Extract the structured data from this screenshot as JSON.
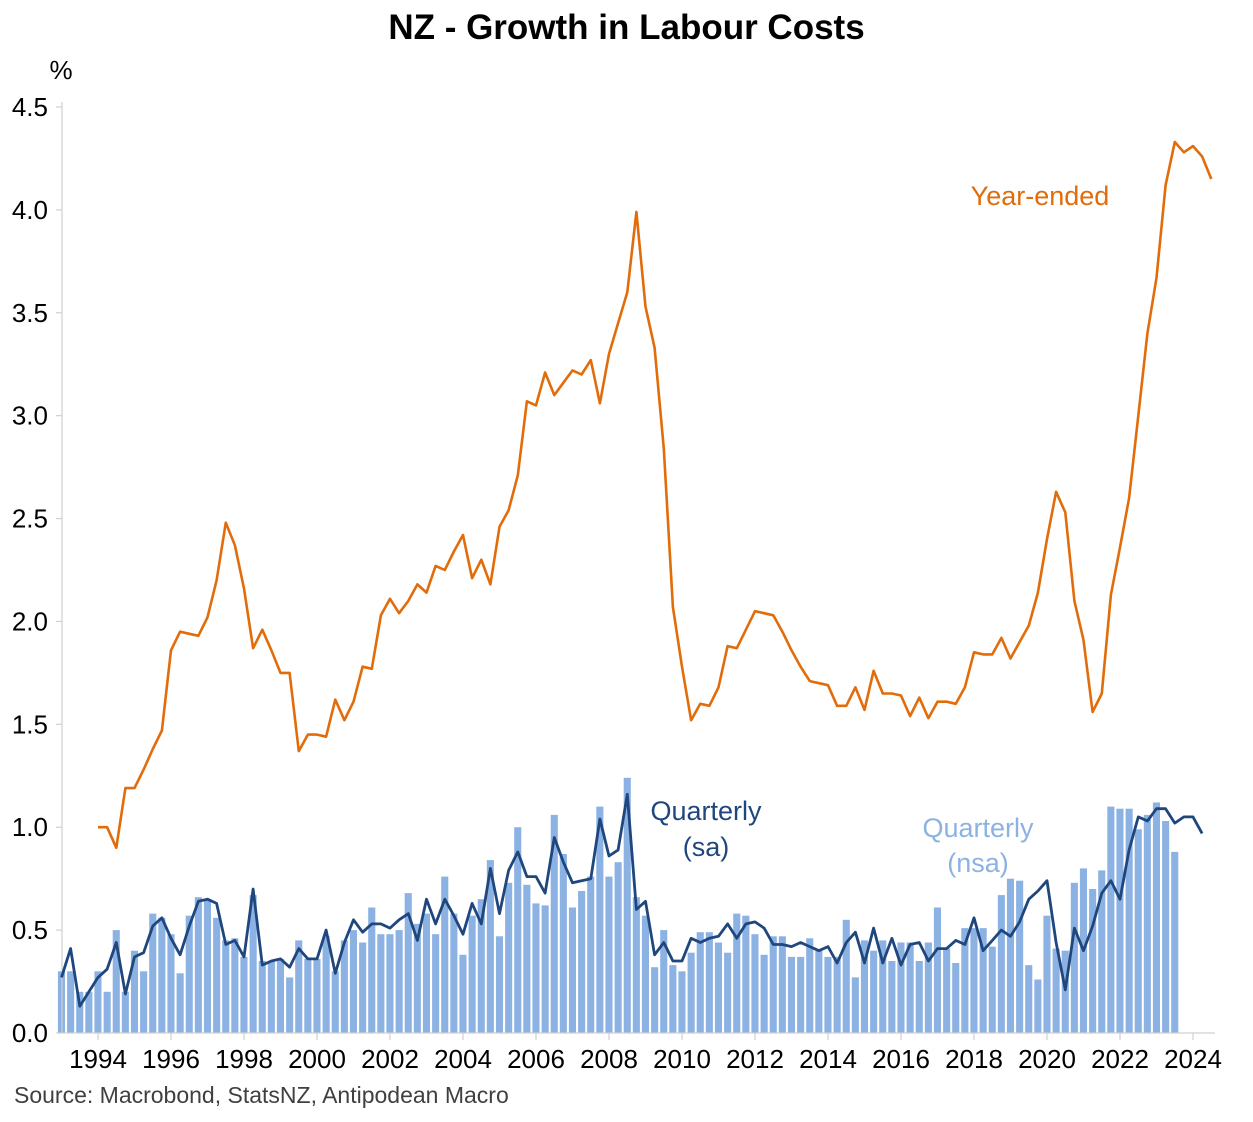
{
  "title": "NZ - Growth in Labour Costs",
  "source": "Source: Macrobond, StatsNZ, Antipodean Macro",
  "chart_data": {
    "type": "bar+line",
    "title": "NZ - Growth in Labour Costs",
    "ylabel": "%",
    "ylim": [
      0,
      4.5
    ],
    "yticks": [
      "0.0",
      "0.5",
      "1.0",
      "1.5",
      "2.0",
      "2.5",
      "3.0",
      "3.5",
      "4.0",
      "4.5"
    ],
    "xticks": [
      "1994",
      "1996",
      "1998",
      "2000",
      "2002",
      "2004",
      "2006",
      "2008",
      "2010",
      "2012",
      "2014",
      "2016",
      "2018",
      "2020",
      "2022",
      "2024"
    ],
    "x_start": 1993.0,
    "x_step": 0.25,
    "colors": {
      "bars": "#8cb2e3",
      "sa": "#1f477e",
      "year_ended": "#e36c0a"
    },
    "annotations": {
      "year_ended": "Year-ended",
      "sa_line1": "Quarterly",
      "sa_line2": "(sa)",
      "nsa_line1": "Quarterly",
      "nsa_line2": "(nsa)"
    },
    "series": [
      {
        "name": "Quarterly (nsa)",
        "type": "bar",
        "values": [
          0.3,
          0.3,
          0.2,
          0.2,
          0.3,
          0.2,
          0.5,
          0.2,
          0.4,
          0.3,
          0.58,
          0.56,
          0.48,
          0.29,
          0.57,
          0.66,
          0.65,
          0.56,
          0.45,
          0.46,
          0.37,
          0.67,
          0.35,
          0.35,
          0.36,
          0.27,
          0.45,
          0.36,
          0.36,
          0.47,
          0.3,
          0.45,
          0.5,
          0.44,
          0.61,
          0.48,
          0.48,
          0.5,
          0.68,
          0.53,
          0.58,
          0.48,
          0.76,
          0.58,
          0.38,
          0.57,
          0.65,
          0.84,
          0.47,
          0.73,
          1.0,
          0.72,
          0.63,
          0.62,
          1.06,
          0.87,
          0.61,
          0.69,
          0.76,
          1.1,
          0.76,
          0.83,
          1.24,
          0.66,
          0.57,
          0.32,
          0.5,
          0.33,
          0.3,
          0.39,
          0.49,
          0.49,
          0.44,
          0.39,
          0.58,
          0.57,
          0.48,
          0.38,
          0.47,
          0.47,
          0.37,
          0.37,
          0.46,
          0.4,
          0.37,
          0.37,
          0.55,
          0.27,
          0.45,
          0.4,
          0.45,
          0.35,
          0.44,
          0.44,
          0.35,
          0.44,
          0.61,
          0.41,
          0.34,
          0.51,
          0.51,
          0.51,
          0.42,
          0.67,
          0.75,
          0.74,
          0.33,
          0.26,
          0.57,
          0.41,
          0.4,
          0.73,
          0.8,
          0.7,
          0.79,
          1.1,
          1.09,
          1.09,
          0.99,
          1.06,
          1.12,
          1.03,
          0.88
        ]
      },
      {
        "name": "Quarterly (sa)",
        "type": "line",
        "values": [
          0.27,
          0.41,
          0.13,
          0.2,
          0.27,
          0.31,
          0.44,
          0.19,
          0.37,
          0.39,
          0.52,
          0.56,
          0.46,
          0.38,
          0.52,
          0.64,
          0.65,
          0.63,
          0.43,
          0.45,
          0.37,
          0.7,
          0.33,
          0.35,
          0.36,
          0.32,
          0.41,
          0.36,
          0.36,
          0.5,
          0.29,
          0.44,
          0.55,
          0.49,
          0.53,
          0.53,
          0.51,
          0.55,
          0.58,
          0.45,
          0.65,
          0.53,
          0.65,
          0.57,
          0.48,
          0.63,
          0.53,
          0.8,
          0.58,
          0.79,
          0.88,
          0.76,
          0.76,
          0.68,
          0.95,
          0.83,
          0.73,
          0.74,
          0.75,
          1.04,
          0.86,
          0.89,
          1.16,
          0.6,
          0.64,
          0.38,
          0.44,
          0.35,
          0.35,
          0.46,
          0.44,
          0.46,
          0.47,
          0.53,
          0.46,
          0.53,
          0.54,
          0.51,
          0.43,
          0.43,
          0.42,
          0.44,
          0.42,
          0.4,
          0.42,
          0.34,
          0.44,
          0.49,
          0.34,
          0.51,
          0.34,
          0.46,
          0.33,
          0.43,
          0.44,
          0.35,
          0.41,
          0.41,
          0.45,
          0.43,
          0.56,
          0.4,
          0.45,
          0.5,
          0.47,
          0.54,
          0.65,
          0.69,
          0.74,
          0.44,
          0.21,
          0.51,
          0.4,
          0.52,
          0.68,
          0.74,
          0.65,
          0.89,
          1.05,
          1.03,
          1.09,
          1.09,
          1.02,
          1.05,
          1.05,
          0.97
        ]
      },
      {
        "name": "Year-ended",
        "type": "line",
        "x_start": 1994.0,
        "values": [
          1.0,
          1.0,
          0.9,
          1.19,
          1.19,
          1.28,
          1.38,
          1.47,
          1.86,
          1.95,
          1.94,
          1.93,
          2.02,
          2.2,
          2.48,
          2.37,
          2.16,
          1.87,
          1.96,
          1.86,
          1.75,
          1.75,
          1.37,
          1.45,
          1.45,
          1.44,
          1.62,
          1.52,
          1.61,
          1.78,
          1.77,
          2.03,
          2.11,
          2.04,
          2.1,
          2.18,
          2.14,
          2.27,
          2.25,
          2.34,
          2.42,
          2.21,
          2.3,
          2.18,
          2.46,
          2.54,
          2.71,
          3.07,
          3.05,
          3.21,
          3.1,
          3.16,
          3.22,
          3.2,
          3.27,
          3.06,
          3.3,
          3.45,
          3.6,
          3.99,
          3.53,
          3.33,
          2.84,
          2.07,
          1.78,
          1.52,
          1.6,
          1.59,
          1.68,
          1.88,
          1.87,
          1.96,
          2.05,
          2.04,
          2.03,
          1.95,
          1.86,
          1.78,
          1.71,
          1.7,
          1.69,
          1.59,
          1.59,
          1.68,
          1.57,
          1.76,
          1.65,
          1.65,
          1.64,
          1.54,
          1.63,
          1.53,
          1.61,
          1.61,
          1.6,
          1.68,
          1.85,
          1.84,
          1.84,
          1.92,
          1.82,
          1.9,
          1.98,
          2.14,
          2.4,
          2.63,
          2.53,
          2.1,
          1.91,
          1.56,
          1.65,
          2.13,
          2.36,
          2.6,
          3.0,
          3.4,
          3.67,
          4.12,
          4.33,
          4.28,
          4.31,
          4.26,
          4.15
        ]
      }
    ]
  }
}
